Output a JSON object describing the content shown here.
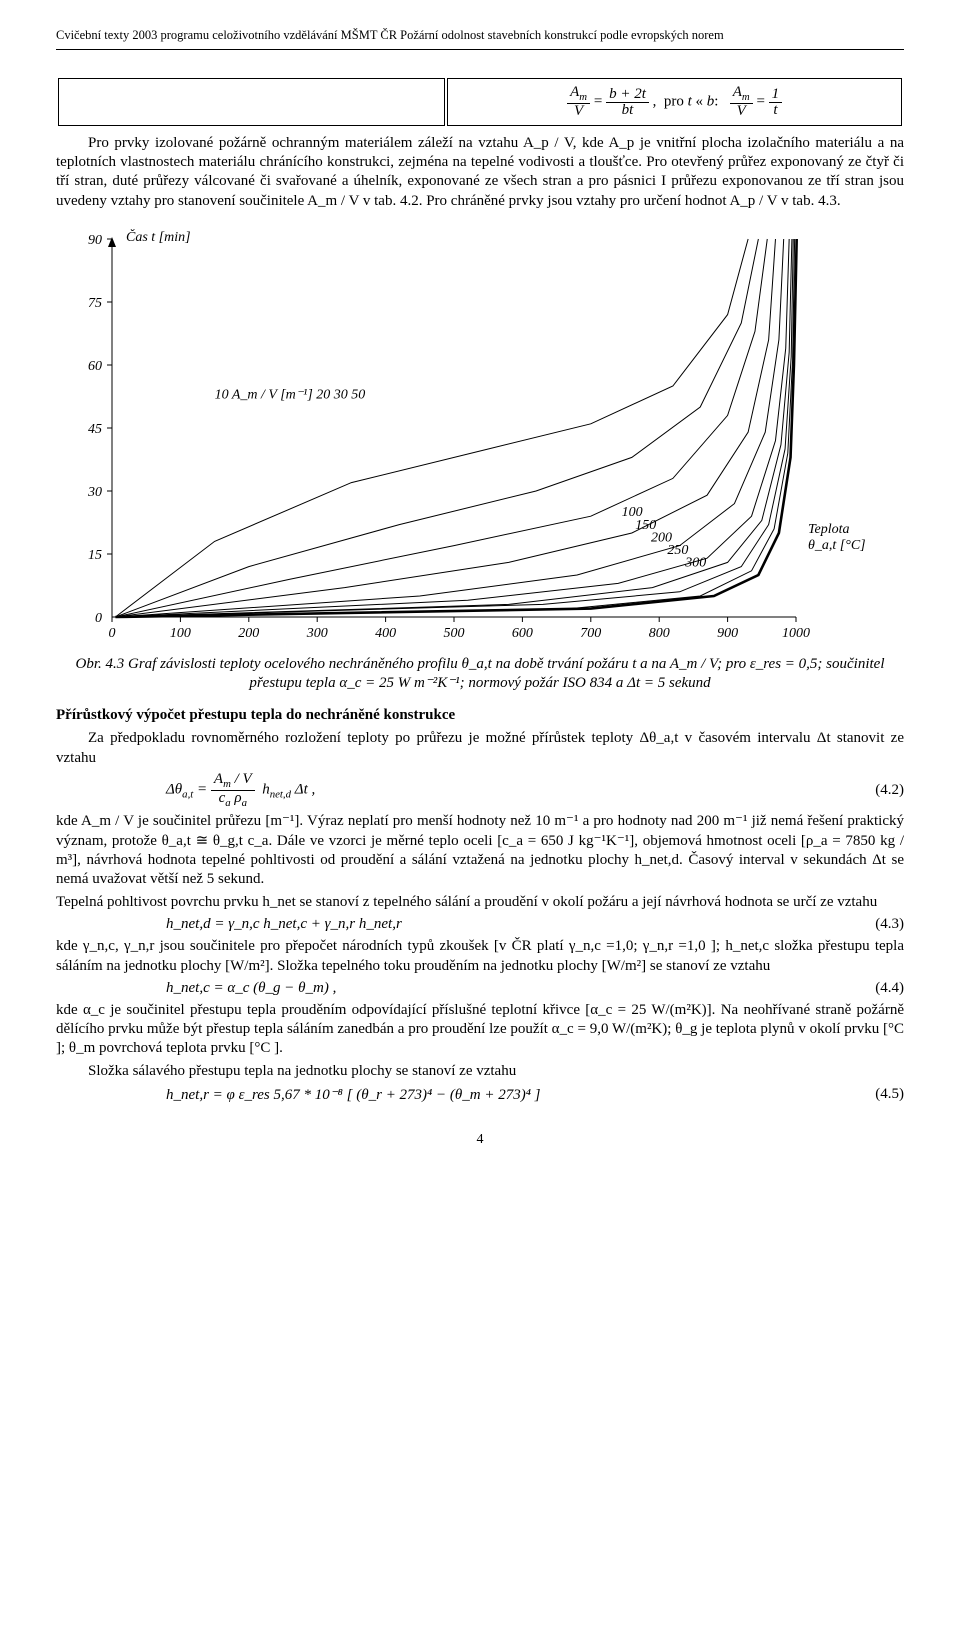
{
  "header": {
    "running": "Cvičební texty 2003 programu celoživotního vzdělávání MŠMT ČR Požární odolnost stavebních konstrukcí podle evropských norem"
  },
  "formula_table": {
    "right_cell": "A_m / V = (b + 2t) / (bt) ,  pro t ≪ b:  A_m / V = 1 / t"
  },
  "para1": "Pro prvky izolované požárně ochranným materiálem záleží na vztahu A_p / V, kde A_p je vnitřní plocha izolačního materiálu a na teplotních vlastnostech materiálu chránícího konstrukci, zejména na tepelné vodivosti a tloušťce. Pro otevřený průřez exponovaný ze čtyř či tří stran, duté průřezy válcované či svařované a úhelník, exponované ze všech stran a pro pásnici I průřezu exponovanou ze tří stran jsou uvedeny vztahy pro stanovení součinitele A_m / V v tab. 4.2. Pro chráněné prvky jsou vztahy pro určení hodnot A_p / V v tab. 4.3.",
  "chart": {
    "type": "line",
    "y_label": "Čas  t [min]",
    "x_axis_right_label": "Teplota\nθ_a,t [°C]",
    "x_ticks": [
      0,
      100,
      200,
      300,
      400,
      500,
      600,
      700,
      800,
      900,
      1000
    ],
    "y_ticks": [
      0,
      15,
      30,
      45,
      60,
      75,
      90
    ],
    "series_label_row": "10   A_m / V   [m⁻¹]   20        30              50",
    "inner_labels": [
      "100",
      "150",
      "200",
      "250",
      "300"
    ],
    "xlim": [
      0,
      1000
    ],
    "ylim": [
      0,
      90
    ],
    "curve_color": "#000000",
    "background": "#ffffff",
    "axis_color": "#000000",
    "label_fontsize": 14,
    "bold_curve_color": "#000000",
    "curves": {
      "c10": [
        [
          5,
          0
        ],
        [
          150,
          18
        ],
        [
          350,
          32
        ],
        [
          550,
          40
        ],
        [
          700,
          46
        ],
        [
          820,
          55
        ],
        [
          900,
          72
        ],
        [
          930,
          90
        ]
      ],
      "c20": [
        [
          5,
          0
        ],
        [
          200,
          12
        ],
        [
          420,
          22
        ],
        [
          620,
          30
        ],
        [
          760,
          38
        ],
        [
          860,
          50
        ],
        [
          920,
          70
        ],
        [
          945,
          90
        ]
      ],
      "c30": [
        [
          5,
          0
        ],
        [
          260,
          9
        ],
        [
          500,
          17
        ],
        [
          700,
          24
        ],
        [
          820,
          33
        ],
        [
          900,
          48
        ],
        [
          940,
          68
        ],
        [
          958,
          90
        ]
      ],
      "c50": [
        [
          5,
          0
        ],
        [
          340,
          7
        ],
        [
          580,
          13
        ],
        [
          760,
          20
        ],
        [
          870,
          29
        ],
        [
          930,
          44
        ],
        [
          960,
          66
        ],
        [
          970,
          90
        ]
      ],
      "c100": [
        [
          5,
          0
        ],
        [
          450,
          5
        ],
        [
          680,
          10
        ],
        [
          830,
          17
        ],
        [
          910,
          27
        ],
        [
          955,
          44
        ],
        [
          975,
          66
        ],
        [
          982,
          90
        ]
      ],
      "c150": [
        [
          5,
          0
        ],
        [
          520,
          4
        ],
        [
          740,
          8
        ],
        [
          870,
          14
        ],
        [
          935,
          24
        ],
        [
          970,
          42
        ],
        [
          985,
          64
        ],
        [
          990,
          90
        ]
      ],
      "c200": [
        [
          5,
          0
        ],
        [
          580,
          3
        ],
        [
          790,
          7
        ],
        [
          900,
          13
        ],
        [
          950,
          23
        ],
        [
          978,
          41
        ],
        [
          990,
          63
        ],
        [
          994,
          90
        ]
      ],
      "c250": [
        [
          5,
          0
        ],
        [
          630,
          3
        ],
        [
          830,
          6
        ],
        [
          920,
          12
        ],
        [
          960,
          22
        ],
        [
          984,
          40
        ],
        [
          993,
          62
        ],
        [
          996,
          90
        ]
      ],
      "c300": [
        [
          5,
          0
        ],
        [
          670,
          2
        ],
        [
          860,
          5
        ],
        [
          935,
          11
        ],
        [
          968,
          21
        ],
        [
          988,
          39
        ],
        [
          995,
          61
        ],
        [
          998,
          90
        ]
      ],
      "bold": [
        [
          5,
          0
        ],
        [
          700,
          2
        ],
        [
          880,
          5
        ],
        [
          945,
          10
        ],
        [
          975,
          20
        ],
        [
          992,
          38
        ],
        [
          997,
          60
        ],
        [
          1001,
          90
        ]
      ]
    }
  },
  "fig_caption": "Obr. 4.3 Graf závislosti teploty ocelového nechráněného profilu θ_a,t na době trvání požáru t a na A_m / V; pro ε_res = 0,5; součinitel přestupu tepla α_c = 25 W m⁻²K⁻¹; normový požár ISO 834 a Δt = 5 sekund",
  "sect_head": "Přírůstkový výpočet přestupu tepla do nechráněné konstrukce",
  "para2": "Za předpokladu rovnoměrného rozložení teploty po průřezu je možné přírůstek teploty Δθ_a,t v časovém intervalu Δt stanovit ze vztahu",
  "eq42_num": "(4.2)",
  "para3": "kde A_m / V je součinitel průřezu [m⁻¹]. Výraz neplatí pro menší hodnoty než 10 m⁻¹ a pro hodnoty nad 200 m⁻¹ již nemá řešení praktický význam, protože θ_a,t ≅ θ_g,t c_a. Dále ve vzorci je měrné teplo oceli [c_a = 650 J kg⁻¹K⁻¹], objemová hmotnost oceli [ρ_a = 7850 kg / m³], návrhová hodnota tepelné pohltivosti od proudění a sálání vztažená na jednotku plochy h_net,d. Časový interval v sekundách Δt se nemá uvažovat větší než 5 sekund.",
  "para4": "Tepelná pohltivost povrchu prvku h_net se stanoví z tepelného sálání a proudění v okolí požáru a její návrhová hodnota se určí ze vztahu",
  "eq43": "h_net,d = γ_n,c h_net,c + γ_n,r h_net,r",
  "eq43_num": "(4.3)",
  "para5": "kde γ_n,c, γ_n,r jsou součinitele pro přepočet národních typů zkoušek [v ČR platí γ_n,c =1,0; γ_n,r =1,0 ]; h_net,c složka přestupu tepla sáláním na jednotku plochy [W/m²]. Složka tepelného toku prouděním na jednotku plochy [W/m²] se stanoví ze vztahu",
  "eq44": "h_net,c = α_c (θ_g − θ_m) ,",
  "eq44_num": "(4.4)",
  "para6": "kde α_c je součinitel přestupu tepla prouděním odpovídající příslušné teplotní křivce [α_c = 25 W/(m²K)]. Na neohřívané straně požárně dělícího prvku může být přestup tepla sáláním zanedbán a pro proudění lze použít α_c = 9,0 W/(m²K); θ_g je teplota plynů v okolí prvku [°C ]; θ_m povrchová teplota prvku [°C ].",
  "para7": "Složka sálavého přestupu tepla na jednotku plochy se stanoví ze vztahu",
  "eq45": "h_net,r = φ ε_res 5,67 * 10⁻⁸ [ (θ_r + 273)⁴ − (θ_m + 273)⁴ ]",
  "eq45_num": "(4.5)",
  "page_num": "4"
}
